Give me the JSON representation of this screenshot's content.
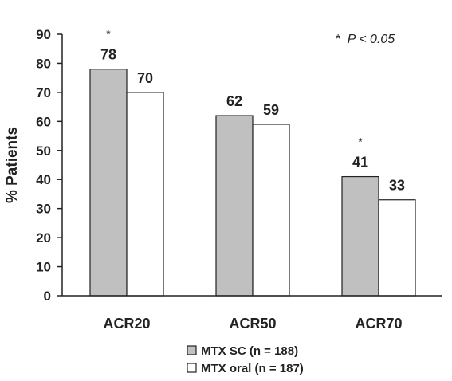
{
  "chart_data": {
    "type": "bar",
    "categories": [
      "ACR20",
      "ACR50",
      "ACR70"
    ],
    "series": [
      {
        "name": "MTX SC (n = 188)",
        "values": [
          78,
          62,
          41
        ],
        "color": "#c0c0c0"
      },
      {
        "name": "MTX oral (n = 187)",
        "values": [
          70,
          59,
          33
        ],
        "color": "#ffffff"
      }
    ],
    "ylabel": "% Patients",
    "xlabel": "",
    "ylim": [
      0,
      90
    ],
    "yticks": [
      0,
      10,
      20,
      30,
      40,
      50,
      60,
      70,
      80,
      90
    ],
    "significance_marker": "*",
    "significant": [
      [
        true,
        false
      ],
      [
        false,
        false
      ],
      [
        true,
        false
      ]
    ],
    "annotation": {
      "star": "*",
      "text": "P < 0.05"
    },
    "legend_position": "bottom-center",
    "grid": false
  }
}
